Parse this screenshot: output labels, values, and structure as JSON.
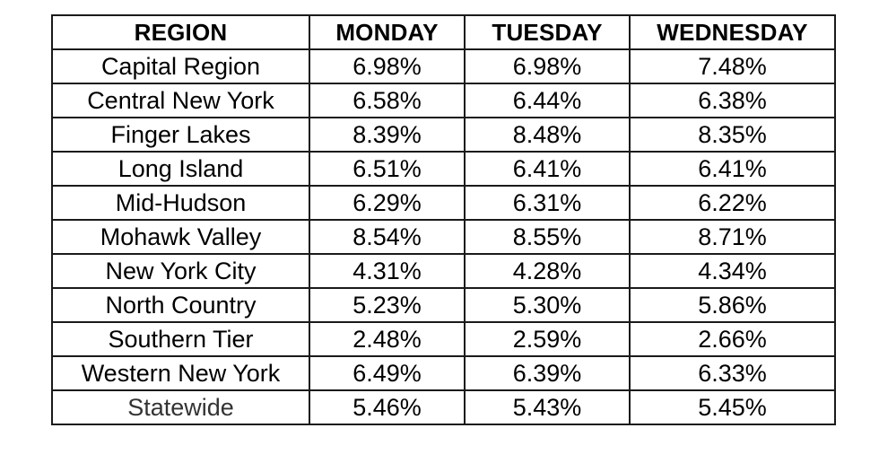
{
  "table": {
    "headers": [
      "REGION",
      "MONDAY",
      "TUESDAY",
      "WEDNESDAY"
    ],
    "rows": [
      {
        "region": "Capital Region",
        "monday": "6.98%",
        "tuesday": "6.98%",
        "wednesday": "7.48%"
      },
      {
        "region": "Central New York",
        "monday": "6.58%",
        "tuesday": "6.44%",
        "wednesday": "6.38%"
      },
      {
        "region": "Finger Lakes",
        "monday": "8.39%",
        "tuesday": "8.48%",
        "wednesday": "8.35%"
      },
      {
        "region": "Long Island",
        "monday": "6.51%",
        "tuesday": "6.41%",
        "wednesday": "6.41%"
      },
      {
        "region": "Mid-Hudson",
        "monday": "6.29%",
        "tuesday": "6.31%",
        "wednesday": "6.22%"
      },
      {
        "region": "Mohawk Valley",
        "monday": "8.54%",
        "tuesday": "8.55%",
        "wednesday": "8.71%"
      },
      {
        "region": "New York City",
        "monday": "4.31%",
        "tuesday": "4.28%",
        "wednesday": "4.34%"
      },
      {
        "region": "North Country",
        "monday": "5.23%",
        "tuesday": "5.30%",
        "wednesday": "5.86%"
      },
      {
        "region": "Southern Tier",
        "monday": "2.48%",
        "tuesday": "2.59%",
        "wednesday": "2.66%"
      },
      {
        "region": "Western New York",
        "monday": "6.49%",
        "tuesday": "6.39%",
        "wednesday": "6.33%"
      },
      {
        "region": "Statewide",
        "monday": "5.46%",
        "tuesday": "5.43%",
        "wednesday": "5.45%"
      }
    ]
  },
  "colors": {
    "border": "#1a1a1a",
    "text": "#000000",
    "background": "#ffffff"
  }
}
